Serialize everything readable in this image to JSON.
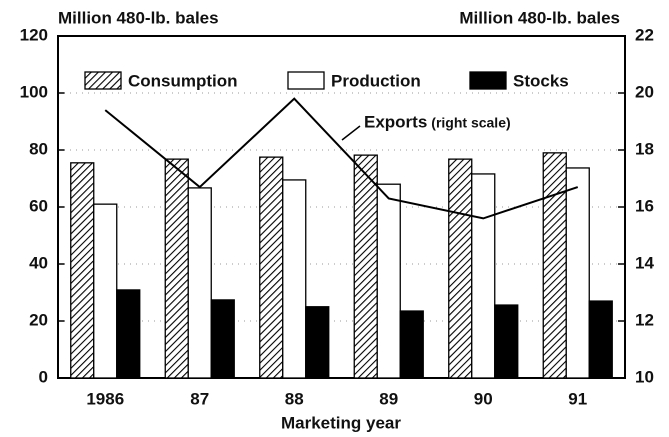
{
  "chart_data": {
    "type": "bar",
    "y_label": "Million 480-lb. bales",
    "y2_label": "Million 480-lb. bales",
    "x_label": "Marketing year",
    "categories": [
      "1986",
      "87",
      "88",
      "89",
      "90",
      "91"
    ],
    "series": [
      {
        "name": "Consumption",
        "color": "#000000",
        "hatch": true,
        "values": [
          75.5,
          76.8,
          77.5,
          78.2,
          76.8,
          79
        ]
      },
      {
        "name": "Production",
        "color": "#ffffff",
        "values": [
          61,
          66.7,
          69.5,
          68,
          71.6,
          73.7
        ]
      },
      {
        "name": "Stocks",
        "color": "#000000",
        "values": [
          30.9,
          27.4,
          25,
          23.5,
          25.6,
          27
        ]
      },
      {
        "name": "Exports",
        "type": "line",
        "axis": "y2",
        "color": "#000000",
        "values": [
          19.4,
          16.7,
          19.8,
          16.3,
          15.6,
          16.7
        ]
      }
    ],
    "annotation": "(right scale)",
    "ylim": [
      0,
      120
    ],
    "yticks": [
      0,
      20,
      40,
      60,
      80,
      100,
      120
    ],
    "y2lim": [
      10,
      22
    ],
    "y2ticks": [
      10,
      12,
      14,
      16,
      18,
      20,
      22
    ],
    "grid": true
  }
}
